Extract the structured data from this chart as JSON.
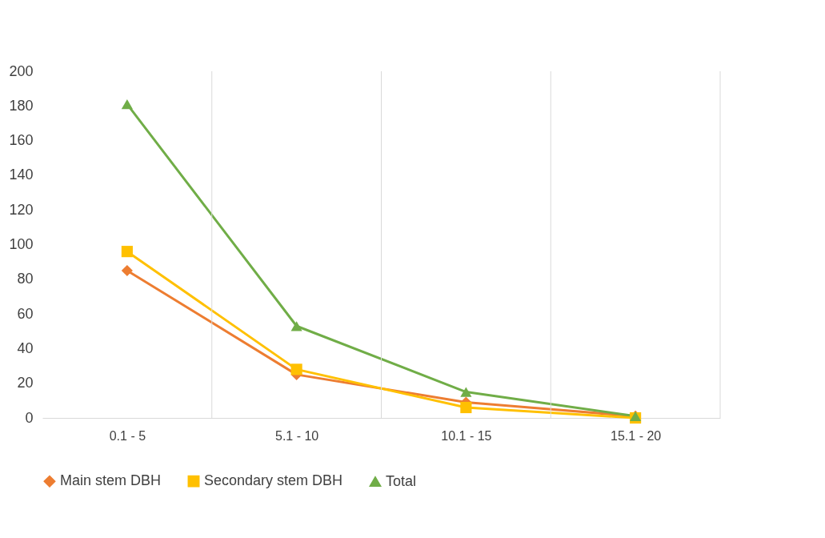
{
  "chart_data": {
    "type": "line",
    "categories": [
      "0.1 - 5",
      "5.1 - 10",
      "10.1 - 15",
      "15.1 - 20"
    ],
    "series": [
      {
        "name": "Main stem DBH",
        "color": "#ed7d31",
        "marker": "diamond",
        "values": [
          85,
          25,
          9,
          1
        ]
      },
      {
        "name": "Secondary stem DBH",
        "color": "#ffc000",
        "marker": "square",
        "values": [
          96,
          28,
          6,
          0
        ]
      },
      {
        "name": "Total",
        "color": "#70ad47",
        "marker": "triangle",
        "values": [
          181,
          53,
          15,
          1
        ]
      }
    ],
    "ylim": [
      0,
      200
    ],
    "yticks": [
      0,
      20,
      40,
      60,
      80,
      100,
      120,
      140,
      160,
      180,
      200
    ],
    "grid": "x",
    "legend": "bottom",
    "line_style": "solid"
  }
}
